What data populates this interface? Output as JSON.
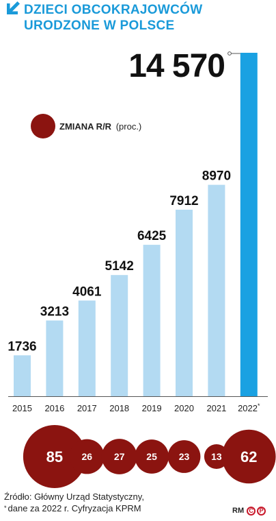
{
  "chart_data": {
    "type": "bar",
    "title": [
      "DZIECI OBCOKRAJOWCÓW",
      "URODZONE W POLSCE"
    ],
    "categories": [
      "2015",
      "2016",
      "2017",
      "2018",
      "2019",
      "2020",
      "2021",
      "2022"
    ],
    "category_marks": [
      "",
      "",
      "",
      "",
      "",
      "",
      "",
      "*"
    ],
    "values": [
      1736,
      3213,
      4061,
      5142,
      6425,
      7912,
      8970,
      14570
    ],
    "value_labels": [
      "1736",
      "3213",
      "4061",
      "5142",
      "6425",
      "7912",
      "8970",
      "14 570"
    ],
    "change_yoy_percent": [
      85,
      26,
      27,
      25,
      23,
      13,
      62
    ],
    "change_labels": [
      "85",
      "26",
      "27",
      "25",
      "23",
      "13",
      "62"
    ],
    "legend": {
      "label": "ZMIANA R/R",
      "unit": "(proc.)"
    },
    "ylim": [
      0,
      14570
    ],
    "grid": false,
    "colors": {
      "title": "#1a9ad9",
      "bar": "#b3daf2",
      "bar_highlight": "#1aa1e2",
      "bubble": "#8b1410",
      "bubble_text": "#ffffff",
      "axis": "#555555"
    }
  },
  "footer": {
    "source": "Źródło: Główny Urząd Statystyczny,",
    "star": "*",
    "note": "dane za 2022 r. Cyfryzacja KPRM"
  },
  "credit": {
    "author": "RM",
    "c": "C",
    "p": "P"
  }
}
